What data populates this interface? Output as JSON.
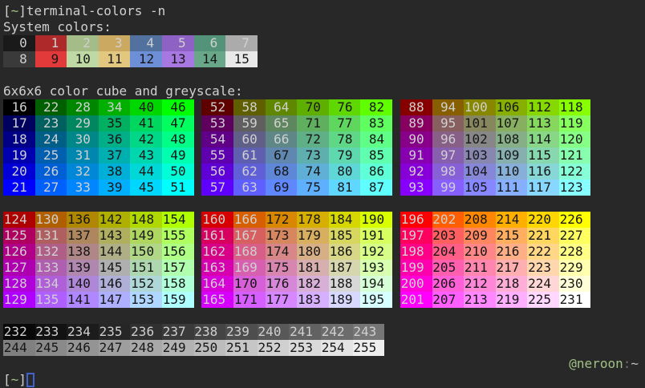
{
  "theme": {
    "background": "#282828",
    "foreground": "#d0d0d0",
    "dark_text": "#161616",
    "prompt_green": "#a0c285",
    "prompt_dim": "#6e6e6e",
    "prompt_grey": "#c0c0c0",
    "cursor_blue": "#4161cf"
  },
  "prompt": {
    "open": "[",
    "path": "~",
    "close": "]"
  },
  "command": "terminal-colors -n",
  "headings": {
    "system": "System colors:",
    "cube": "6x6x6 color cube and greyscale:"
  },
  "system_rows": [
    {
      "cells": [
        {
          "n": 0,
          "hex": "#1a1a1a",
          "fg": "light"
        },
        {
          "n": 1,
          "hex": "#ae2a2a",
          "fg": "light"
        },
        {
          "n": 2,
          "hex": "#a3bc88",
          "fg": "light"
        },
        {
          "n": 3,
          "hex": "#cca960",
          "fg": "light"
        },
        {
          "n": 4,
          "hex": "#53719f",
          "fg": "light"
        },
        {
          "n": 5,
          "hex": "#8d62c4",
          "fg": "light"
        },
        {
          "n": 6,
          "hex": "#529379",
          "fg": "light"
        },
        {
          "n": 7,
          "hex": "#ababab",
          "fg": "light"
        }
      ]
    },
    {
      "cells": [
        {
          "n": 8,
          "hex": "#3a3a3a",
          "fg": "light"
        },
        {
          "n": 9,
          "hex": "#e23a3a",
          "fg": "dark"
        },
        {
          "n": 10,
          "hex": "#bfd9a5",
          "fg": "dark"
        },
        {
          "n": 11,
          "hex": "#e2c77f",
          "fg": "dark"
        },
        {
          "n": 12,
          "hex": "#6d8fd8",
          "fg": "dark"
        },
        {
          "n": 13,
          "hex": "#a878e2",
          "fg": "dark"
        },
        {
          "n": 14,
          "hex": "#68a788",
          "fg": "dark"
        },
        {
          "n": 15,
          "hex": "#e9e9e9",
          "fg": "dark"
        }
      ]
    }
  ],
  "cube_blocks": [
    {
      "rows": [
        [
          16,
          22,
          28,
          34,
          40,
          46
        ],
        [
          17,
          23,
          29,
          35,
          41,
          47
        ],
        [
          18,
          24,
          30,
          36,
          42,
          48
        ],
        [
          19,
          25,
          31,
          37,
          43,
          49
        ],
        [
          20,
          26,
          32,
          38,
          44,
          50
        ],
        [
          21,
          27,
          33,
          39,
          45,
          51
        ]
      ]
    },
    {
      "rows": [
        [
          52,
          58,
          64,
          70,
          76,
          82
        ],
        [
          53,
          59,
          65,
          71,
          77,
          83
        ],
        [
          54,
          60,
          66,
          72,
          78,
          84
        ],
        [
          55,
          61,
          67,
          73,
          79,
          85
        ],
        [
          56,
          62,
          68,
          74,
          80,
          86
        ],
        [
          57,
          63,
          69,
          75,
          81,
          87
        ]
      ]
    },
    {
      "rows": [
        [
          88,
          94,
          100,
          106,
          112,
          118
        ],
        [
          89,
          95,
          101,
          107,
          113,
          119
        ],
        [
          90,
          96,
          102,
          108,
          114,
          120
        ],
        [
          91,
          97,
          103,
          109,
          115,
          121
        ],
        [
          92,
          98,
          104,
          110,
          116,
          122
        ],
        [
          93,
          99,
          105,
          111,
          117,
          123
        ]
      ]
    },
    {
      "rows": [
        [
          124,
          130,
          136,
          142,
          148,
          154
        ],
        [
          125,
          131,
          137,
          143,
          149,
          155
        ],
        [
          126,
          132,
          138,
          144,
          150,
          156
        ],
        [
          127,
          133,
          139,
          145,
          151,
          157
        ],
        [
          128,
          134,
          140,
          146,
          152,
          158
        ],
        [
          129,
          135,
          141,
          147,
          153,
          159
        ]
      ]
    },
    {
      "rows": [
        [
          160,
          166,
          172,
          178,
          184,
          190
        ],
        [
          161,
          167,
          173,
          179,
          185,
          191
        ],
        [
          162,
          168,
          174,
          180,
          186,
          192
        ],
        [
          163,
          169,
          175,
          181,
          187,
          193
        ],
        [
          164,
          170,
          176,
          182,
          188,
          194
        ],
        [
          165,
          171,
          177,
          183,
          189,
          195
        ]
      ]
    },
    {
      "rows": [
        [
          196,
          202,
          208,
          214,
          220,
          226
        ],
        [
          197,
          203,
          209,
          215,
          221,
          227
        ],
        [
          198,
          204,
          210,
          216,
          222,
          228
        ],
        [
          199,
          205,
          211,
          217,
          223,
          229
        ],
        [
          200,
          206,
          212,
          218,
          224,
          230
        ],
        [
          201,
          207,
          213,
          219,
          225,
          231
        ]
      ]
    }
  ],
  "greyscale_rows": [
    [
      232,
      233,
      234,
      235,
      236,
      237,
      238,
      239,
      240,
      241,
      242,
      243
    ],
    [
      244,
      245,
      246,
      247,
      248,
      249,
      250,
      251,
      252,
      253,
      254,
      255
    ]
  ],
  "rprompt": {
    "user": "@neroon",
    "sep": ":",
    "path": "~"
  }
}
